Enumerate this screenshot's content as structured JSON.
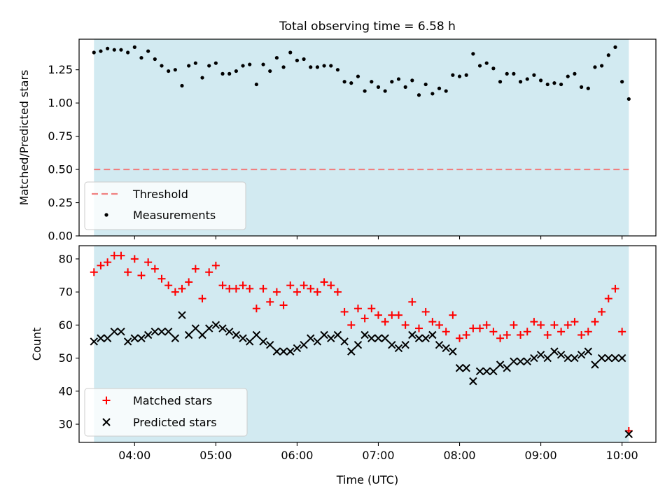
{
  "colors": {
    "span": "#add8e6",
    "threshold": "#f08080",
    "measurement": "#000000",
    "matched": "#ff0000",
    "predicted": "#000000"
  },
  "chart_data": [
    {
      "type": "scatter",
      "title": "Total observing time = 6.58 h",
      "ylabel": "Matched/Predicted stars",
      "xlabel": "",
      "xlim": [
        "03:19",
        "10:25"
      ],
      "ylim": [
        0,
        1.48
      ],
      "yticks": [
        "0.00",
        "0.25",
        "0.50",
        "0.75",
        "1.00",
        "1.25"
      ],
      "observing_span": [
        "03:30",
        "10:05"
      ],
      "threshold": 0.5,
      "legend_position": "lower-left",
      "legend": {
        "threshold_label": "Threshold",
        "measurements_label": "Measurements"
      },
      "x": [
        "03:30",
        "03:35",
        "03:40",
        "03:45",
        "03:50",
        "03:55",
        "04:00",
        "04:05",
        "04:10",
        "04:15",
        "04:20",
        "04:25",
        "04:30",
        "04:35",
        "04:40",
        "04:45",
        "04:50",
        "04:55",
        "05:00",
        "05:05",
        "05:10",
        "05:15",
        "05:20",
        "05:25",
        "05:30",
        "05:35",
        "05:40",
        "05:45",
        "05:50",
        "05:55",
        "06:00",
        "06:05",
        "06:10",
        "06:15",
        "06:20",
        "06:25",
        "06:30",
        "06:35",
        "06:40",
        "06:45",
        "06:50",
        "06:55",
        "07:00",
        "07:05",
        "07:10",
        "07:15",
        "07:20",
        "07:25",
        "07:30",
        "07:35",
        "07:40",
        "07:45",
        "07:50",
        "07:55",
        "08:00",
        "08:05",
        "08:10",
        "08:15",
        "08:20",
        "08:25",
        "08:30",
        "08:35",
        "08:40",
        "08:45",
        "08:50",
        "08:55",
        "09:00",
        "09:05",
        "09:10",
        "09:15",
        "09:20",
        "09:25",
        "09:30",
        "09:35",
        "09:40",
        "09:45",
        "09:50",
        "09:55",
        "10:00",
        "10:05"
      ],
      "values": [
        1.38,
        1.39,
        1.41,
        1.4,
        1.4,
        1.38,
        1.42,
        1.34,
        1.39,
        1.33,
        1.28,
        1.24,
        1.25,
        1.13,
        1.28,
        1.3,
        1.19,
        1.28,
        1.3,
        1.22,
        1.22,
        1.24,
        1.28,
        1.29,
        1.14,
        1.29,
        1.24,
        1.34,
        1.27,
        1.38,
        1.32,
        1.33,
        1.27,
        1.27,
        1.28,
        1.28,
        1.25,
        1.16,
        1.15,
        1.2,
        1.09,
        1.16,
        1.12,
        1.09,
        1.16,
        1.18,
        1.12,
        1.17,
        1.06,
        1.14,
        1.07,
        1.11,
        1.09,
        1.21,
        1.2,
        1.21,
        1.37,
        1.28,
        1.3,
        1.26,
        1.16,
        1.22,
        1.22,
        1.16,
        1.18,
        1.21,
        1.17,
        1.14,
        1.15,
        1.14,
        1.2,
        1.22,
        1.12,
        1.11,
        1.27,
        1.28,
        1.36,
        1.42,
        1.16,
        1.03
      ]
    },
    {
      "type": "scatter",
      "title": "",
      "ylabel": "Count",
      "xlabel": "Time (UTC)",
      "xlim": [
        "03:19",
        "10:25"
      ],
      "ylim": [
        24.5,
        84
      ],
      "yticks": [
        "30",
        "40",
        "50",
        "60",
        "70",
        "80"
      ],
      "xticks": [
        "04:00",
        "05:00",
        "06:00",
        "07:00",
        "08:00",
        "09:00",
        "10:00"
      ],
      "observing_span": [
        "03:30",
        "10:05"
      ],
      "legend_position": "lower-left",
      "x": [
        "03:30",
        "03:35",
        "03:40",
        "03:45",
        "03:50",
        "03:55",
        "04:00",
        "04:05",
        "04:10",
        "04:15",
        "04:20",
        "04:25",
        "04:30",
        "04:35",
        "04:40",
        "04:45",
        "04:50",
        "04:55",
        "05:00",
        "05:05",
        "05:10",
        "05:15",
        "05:20",
        "05:25",
        "05:30",
        "05:35",
        "05:40",
        "05:45",
        "05:50",
        "05:55",
        "06:00",
        "06:05",
        "06:10",
        "06:15",
        "06:20",
        "06:25",
        "06:30",
        "06:35",
        "06:40",
        "06:45",
        "06:50",
        "06:55",
        "07:00",
        "07:05",
        "07:10",
        "07:15",
        "07:20",
        "07:25",
        "07:30",
        "07:35",
        "07:40",
        "07:45",
        "07:50",
        "07:55",
        "08:00",
        "08:05",
        "08:10",
        "08:15",
        "08:20",
        "08:25",
        "08:30",
        "08:35",
        "08:40",
        "08:45",
        "08:50",
        "08:55",
        "09:00",
        "09:05",
        "09:10",
        "09:15",
        "09:20",
        "09:25",
        "09:30",
        "09:35",
        "09:40",
        "09:45",
        "09:50",
        "09:55",
        "10:00",
        "10:05"
      ],
      "series": [
        {
          "name": "Matched stars",
          "marker": "plus",
          "values": [
            76,
            78,
            79,
            81,
            81,
            76,
            80,
            75,
            79,
            77,
            74,
            72,
            70,
            71,
            73,
            77,
            68,
            76,
            78,
            72,
            71,
            71,
            72,
            71,
            65,
            71,
            67,
            70,
            66,
            72,
            70,
            72,
            71,
            70,
            73,
            72,
            70,
            64,
            60,
            65,
            62,
            65,
            63,
            61,
            63,
            63,
            60,
            67,
            59,
            64,
            61,
            60,
            58,
            63,
            56,
            57,
            59,
            59,
            60,
            58,
            56,
            57,
            60,
            57,
            58,
            61,
            60,
            57,
            60,
            58,
            60,
            61,
            57,
            58,
            61,
            64,
            68,
            71,
            58,
            28
          ]
        },
        {
          "name": "Predicted stars",
          "marker": "x",
          "values": [
            55,
            56,
            56,
            58,
            58,
            55,
            56,
            56,
            57,
            58,
            58,
            58,
            56,
            63,
            57,
            59,
            57,
            59,
            60,
            59,
            58,
            57,
            56,
            55,
            57,
            55,
            54,
            52,
            52,
            52,
            53,
            54,
            56,
            55,
            57,
            56,
            57,
            55,
            52,
            54,
            57,
            56,
            56,
            56,
            54,
            53,
            54,
            57,
            56,
            56,
            57,
            54,
            53,
            52,
            47,
            47,
            43,
            46,
            46,
            46,
            48,
            47,
            49,
            49,
            49,
            50,
            51,
            50,
            52,
            51,
            50,
            50,
            51,
            52,
            48,
            50,
            50,
            50,
            50,
            27
          ]
        }
      ]
    }
  ]
}
